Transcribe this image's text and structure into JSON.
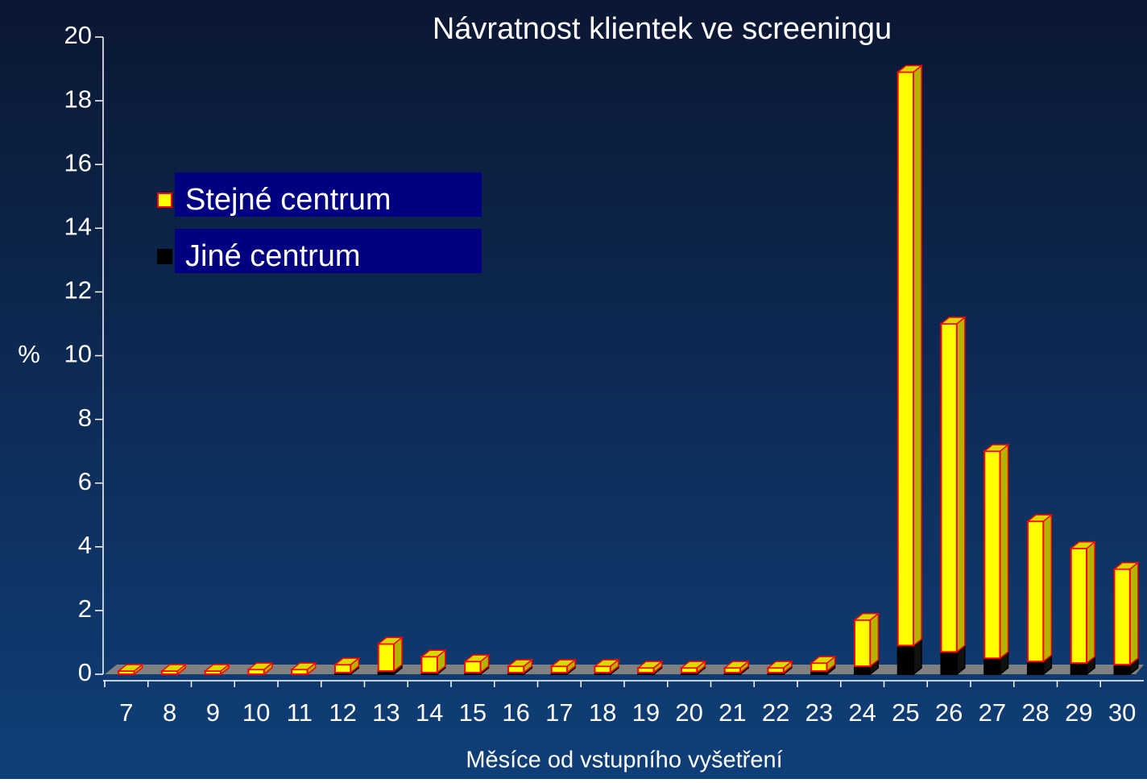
{
  "chart_data": {
    "type": "stacked_bar_3d",
    "title": "Návratnost klientek ve screeningu",
    "x_label": "Měsíce od vstupního vyšetření",
    "y_label": "%",
    "categories": [
      "7",
      "8",
      "9",
      "10",
      "11",
      "12",
      "13",
      "14",
      "15",
      "16",
      "17",
      "18",
      "19",
      "20",
      "21",
      "22",
      "23",
      "24",
      "25",
      "26",
      "27",
      "28",
      "29",
      "30"
    ],
    "series": [
      {
        "name": "Jiné centrum",
        "color": "#000000",
        "values": [
          0,
          0,
          0,
          0,
          0,
          0.05,
          0.1,
          0.05,
          0.05,
          0.05,
          0.05,
          0.05,
          0.05,
          0.05,
          0.05,
          0.05,
          0.1,
          0.25,
          0.9,
          0.7,
          0.5,
          0.4,
          0.35,
          0.3
        ]
      },
      {
        "name": "Stejné centrum",
        "color": "#ffff00",
        "values": [
          0.1,
          0.1,
          0.1,
          0.15,
          0.15,
          0.25,
          0.85,
          0.5,
          0.35,
          0.2,
          0.2,
          0.2,
          0.15,
          0.15,
          0.15,
          0.15,
          0.25,
          1.45,
          18.0,
          10.3,
          6.5,
          4.4,
          3.6,
          3.0
        ]
      }
    ],
    "ylim": [
      0,
      20
    ],
    "yticks": [
      0,
      2,
      4,
      6,
      8,
      10,
      12,
      14,
      16,
      18,
      20
    ]
  }
}
